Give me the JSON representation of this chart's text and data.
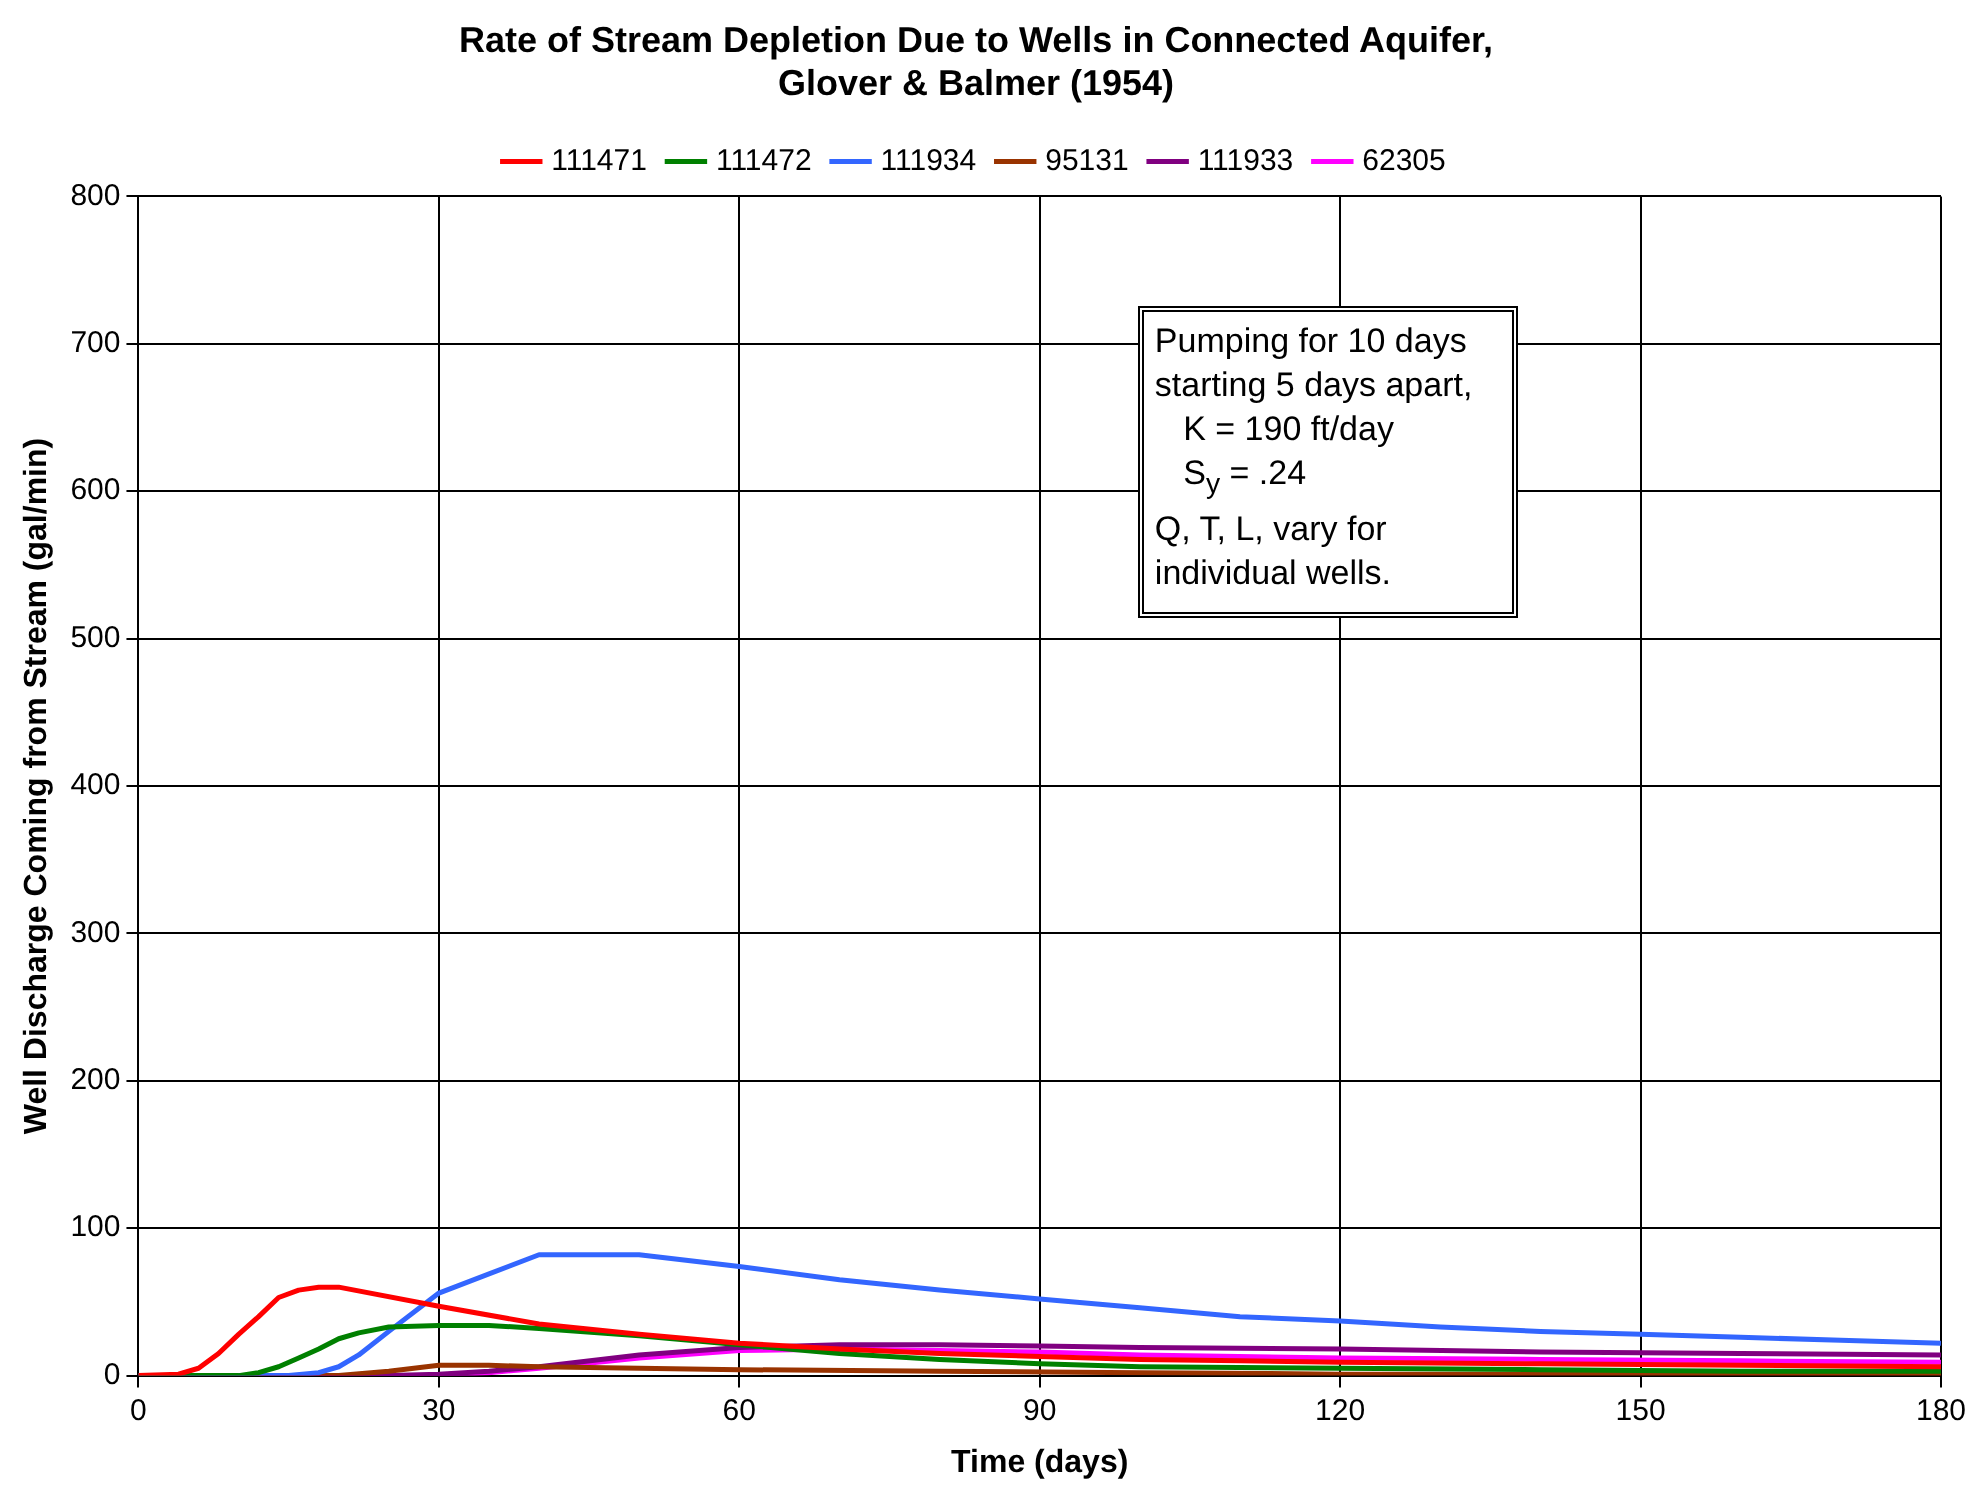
{
  "chart_data": {
    "type": "line",
    "title": "Rate of Stream Depletion Due to Wells in Connected Aquifer,\nGlover & Balmer (1954)",
    "xlabel": "Time (days)",
    "ylabel": "Well Discharge Coming from Stream (gal/min)",
    "xlim": [
      0,
      180
    ],
    "xticks": [
      0,
      30,
      60,
      90,
      120,
      150,
      180
    ],
    "ylim": [
      0,
      800
    ],
    "yticks": [
      0,
      100,
      200,
      300,
      400,
      500,
      600,
      700,
      800
    ],
    "grid": true,
    "legend": "top",
    "marker": "none",
    "line_style": "solid",
    "annotations": [
      "Pumping for 10 days\nstarting 5 days apart,\n   K = 190 ft/day\n   S$_{y}$ = .24\nQ, T, L, vary for\nindividual wells."
    ],
    "series": [
      {
        "name": "111471",
        "color": "#ff0000",
        "x": [
          0,
          4,
          6,
          8,
          10,
          12,
          14,
          16,
          18,
          20,
          30,
          40,
          50,
          60,
          70,
          80,
          90,
          100,
          110,
          120,
          140,
          160,
          180
        ],
        "values": [
          0,
          1,
          5,
          15,
          28,
          40,
          53,
          58,
          60,
          60,
          47,
          35,
          28,
          22,
          18,
          15,
          13,
          11,
          10,
          9,
          8,
          7,
          6
        ]
      },
      {
        "name": "111472",
        "color": "#008000",
        "x": [
          0,
          10,
          12,
          14,
          16,
          18,
          20,
          22,
          25,
          30,
          35,
          40,
          50,
          60,
          70,
          80,
          90,
          100,
          120,
          140,
          160,
          180
        ],
        "values": [
          0,
          0,
          2,
          6,
          12,
          18,
          25,
          29,
          33,
          34,
          34,
          32,
          27,
          21,
          15,
          11,
          8,
          6,
          5,
          4,
          3,
          3
        ]
      },
      {
        "name": "111934",
        "color": "#3366ff",
        "x": [
          0,
          15,
          18,
          20,
          22,
          25,
          30,
          40,
          50,
          60,
          70,
          80,
          90,
          100,
          110,
          120,
          130,
          140,
          150,
          160,
          170,
          180
        ],
        "values": [
          0,
          0,
          2,
          6,
          14,
          30,
          56,
          82,
          82,
          74,
          65,
          58,
          52,
          46,
          40,
          37,
          33,
          30,
          28,
          26,
          24,
          22
        ]
      },
      {
        "name": "95131",
        "color": "#993300",
        "x": [
          0,
          20,
          25,
          30,
          35,
          40,
          50,
          60,
          80,
          100,
          120,
          150,
          180
        ],
        "values": [
          0,
          0,
          3,
          7,
          7,
          6,
          5,
          4,
          3,
          2,
          1,
          1,
          1
        ]
      },
      {
        "name": "111933",
        "color": "#800080",
        "x": [
          0,
          25,
          30,
          35,
          40,
          50,
          60,
          70,
          80,
          90,
          100,
          120,
          140,
          160,
          180
        ],
        "values": [
          0,
          0,
          1,
          3,
          6,
          14,
          19,
          21,
          21,
          20,
          19,
          18,
          16,
          15,
          14
        ]
      },
      {
        "name": "62305",
        "color": "#ff00ff",
        "x": [
          0,
          30,
          35,
          40,
          50,
          60,
          70,
          80,
          90,
          100,
          120,
          140,
          160,
          180
        ],
        "values": [
          0,
          0,
          2,
          5,
          12,
          17,
          18,
          17,
          16,
          14,
          12,
          11,
          10,
          9
        ]
      }
    ]
  }
}
